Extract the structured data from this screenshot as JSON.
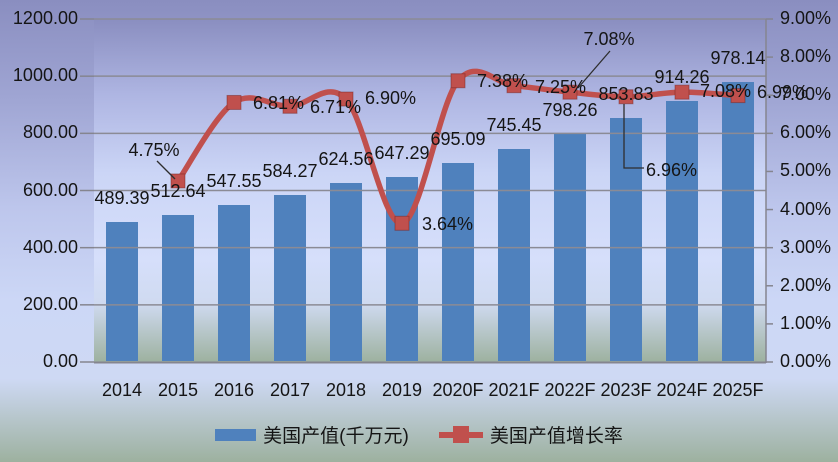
{
  "chart_data": {
    "type": "bar-line-combo",
    "categories": [
      "2014",
      "2015",
      "2016",
      "2017",
      "2018",
      "2019",
      "2020F",
      "2021F",
      "2022F",
      "2023F",
      "2024F",
      "2025F"
    ],
    "series": [
      {
        "name": "美国产值(千万元)",
        "type": "bar",
        "axis": "left",
        "color": "#4F81BD",
        "values": [
          489.39,
          512.64,
          547.55,
          584.27,
          624.56,
          647.29,
          695.09,
          745.45,
          798.26,
          853.83,
          914.26,
          978.14
        ],
        "data_labels": [
          "489.39",
          "512.64",
          "547.55",
          "584.27",
          "624.56",
          "647.29",
          "695.09",
          "745.45",
          "798.26",
          "853.83",
          "914.26",
          "978.14"
        ]
      },
      {
        "name": "美国产值增长率",
        "type": "line",
        "smooth": true,
        "axis": "right",
        "color": "#C0504D",
        "values": [
          null,
          4.75,
          6.81,
          6.71,
          6.9,
          3.64,
          7.38,
          7.25,
          7.08,
          6.96,
          7.08,
          6.99
        ],
        "data_labels": [
          null,
          "4.75%",
          "6.81%",
          "6.71%",
          "6.90%",
          "3.64%",
          "7.38%",
          "7.25%",
          "7.08%",
          "6.96%",
          "7.08%",
          "6.99%"
        ]
      }
    ],
    "left_axis": {
      "min": 0,
      "max": 1200,
      "step": 200,
      "tick_values": [
        0,
        200,
        400,
        600,
        800,
        1000,
        1200
      ],
      "tick_labels": [
        "0.00",
        "200.00",
        "400.00",
        "600.00",
        "800.00",
        "1000.00",
        "1200.00"
      ]
    },
    "right_axis": {
      "min": 0,
      "max": 9,
      "step": 1,
      "tick_values": [
        0,
        1,
        2,
        3,
        4,
        5,
        6,
        7,
        8,
        9
      ],
      "tick_labels": [
        "0.00%",
        "1.00%",
        "2.00%",
        "3.00%",
        "4.00%",
        "5.00%",
        "6.00%",
        "7.00%",
        "8.00%",
        "9.00%"
      ]
    },
    "grid": true,
    "legend_position": "bottom"
  },
  "colors": {
    "bar": "#4F81BD",
    "line": "#C0504D",
    "gridline": "#8B8B95",
    "axis": "#85858F",
    "leader": "#2E2E2E",
    "text": "#151515",
    "background_top": "#8A8EC0",
    "background_mid": "#CCD7F6",
    "background_bottom": "#9DB19F"
  }
}
